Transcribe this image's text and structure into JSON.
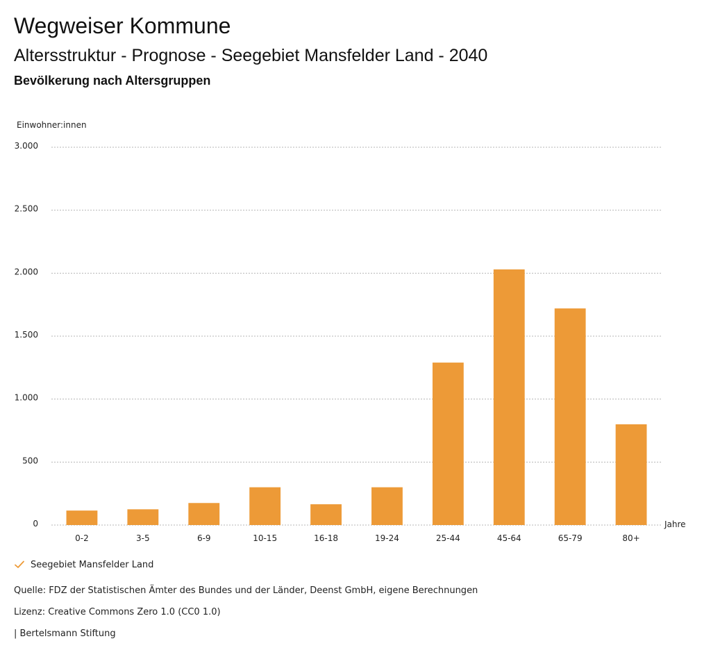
{
  "header": {
    "title": "Wegweiser Kommune",
    "subtitle": "Altersstruktur - Prognose - Seegebiet Mansfelder Land - 2040",
    "chart_heading": "Bevölkerung nach Altersgruppen"
  },
  "chart_data": {
    "type": "bar",
    "title": "Bevölkerung nach Altersgruppen",
    "ylabel": "Einwohner:innen",
    "xlabel": "Jahre",
    "categories": [
      "0-2",
      "3-5",
      "6-9",
      "10-15",
      "16-18",
      "19-24",
      "25-44",
      "45-64",
      "65-79",
      "80+"
    ],
    "series": [
      {
        "name": "Seegebiet Mansfelder Land",
        "values": [
          115,
          125,
          175,
          300,
          165,
          300,
          1290,
          2030,
          1720,
          800
        ],
        "color": "#ed9a37"
      }
    ],
    "ylim": [
      0,
      3000
    ],
    "yticks": [
      0,
      500,
      1000,
      1500,
      2000,
      2500,
      3000
    ],
    "ytick_labels": [
      "0",
      "500",
      "1.000",
      "1.500",
      "2.000",
      "2.500",
      "3.000"
    ],
    "grid": true,
    "legend_position": "bottom-left"
  },
  "legend": {
    "label": "Seegebiet Mansfelder Land",
    "icon": "check-icon",
    "color": "#ed9a37"
  },
  "footer": {
    "source": "Quelle: FDZ der Statistischen Ämter des Bundes und der Länder, Deenst GmbH, eigene Berechnungen",
    "license": "Lizenz: Creative Commons Zero 1.0 (CC0 1.0)",
    "publisher": "| Bertelsmann Stiftung"
  }
}
